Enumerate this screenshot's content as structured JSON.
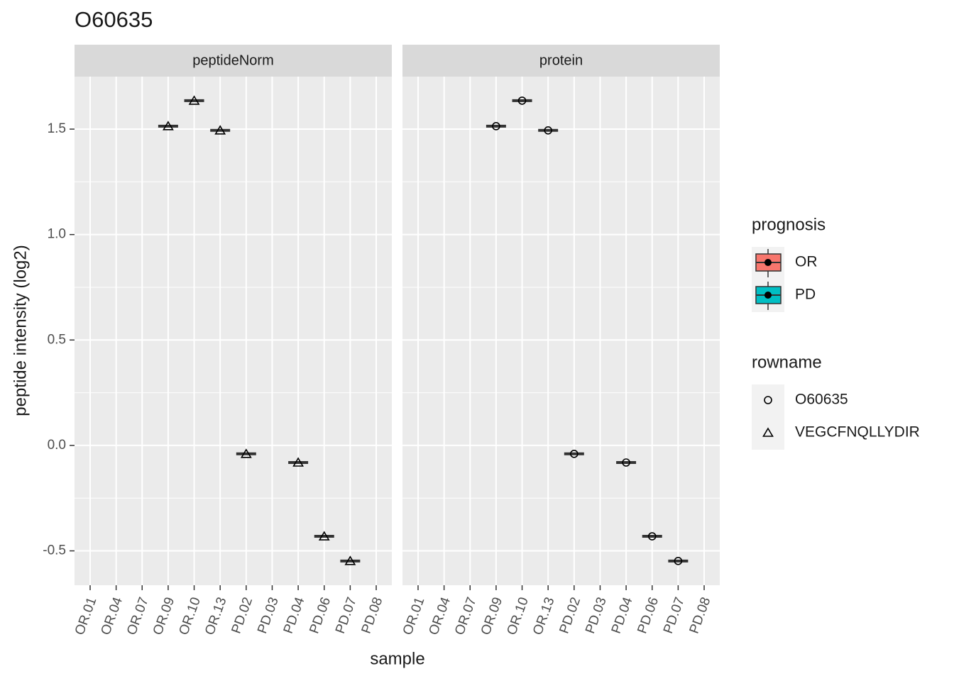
{
  "chart_data": {
    "type": "box",
    "title": "O60635",
    "x_label": "sample",
    "y_label": "peptide intensity (log2)",
    "categories": [
      "OR.01",
      "OR.04",
      "OR.07",
      "OR.09",
      "OR.10",
      "OR.13",
      "PD.02",
      "PD.03",
      "PD.04",
      "PD.06",
      "PD.07",
      "PD.08"
    ],
    "ylim": [
      -0.663,
      1.749
    ],
    "yticks": [
      -0.5,
      {
        "value": 0,
        "label": "0.0"
      },
      0.5,
      {
        "value": 1,
        "label": "1.0"
      },
      1.5
    ],
    "grid": true,
    "panels": [
      {
        "title": "peptideNorm",
        "shape": "triangle",
        "values": [
          null,
          null,
          null,
          1.514,
          1.635,
          1.494,
          -0.04,
          null,
          -0.081,
          -0.431,
          -0.548,
          null
        ]
      },
      {
        "title": "protein",
        "shape": "circle",
        "values": [
          null,
          null,
          null,
          1.514,
          1.635,
          1.494,
          -0.04,
          null,
          -0.081,
          -0.431,
          -0.548,
          null
        ]
      }
    ],
    "legends": [
      {
        "title": "prognosis",
        "entries": [
          {
            "name": "OR",
            "color": "#F8766D"
          },
          {
            "name": "PD",
            "color": "#00BFC4"
          }
        ]
      },
      {
        "title": "rowname",
        "entries": [
          {
            "name": "O60635",
            "shape": "circle"
          },
          {
            "name": "VEGCFNQLLYDIR",
            "shape": "triangle"
          }
        ]
      }
    ]
  }
}
